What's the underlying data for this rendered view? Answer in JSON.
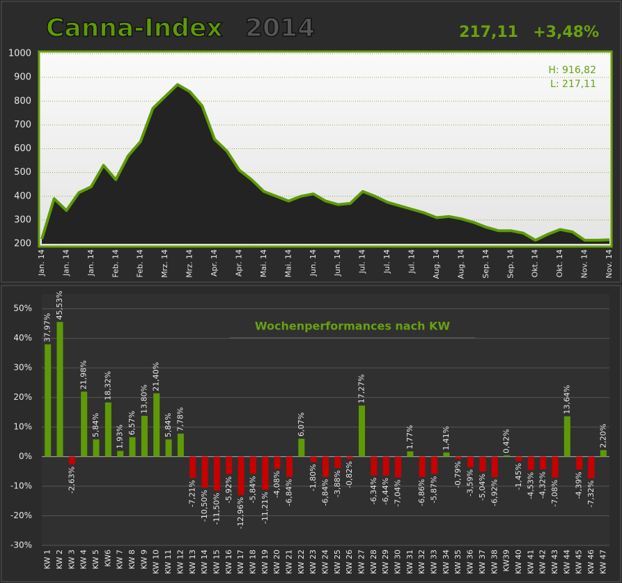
{
  "chart_data": [
    {
      "type": "area",
      "title": "Canna-Index",
      "title_suffix": "2014",
      "last_value_label": "217,11",
      "change_label": "+3,48%",
      "annotations": [
        "H: 916,82",
        "L: 217,11"
      ],
      "categories": [
        "Jan. 14",
        null,
        "Jan. 14",
        null,
        "Jan. 14",
        null,
        "Feb. 14",
        null,
        "Feb. 14",
        null,
        "Mrz. 14",
        null,
        "Mrz. 14",
        null,
        "Apr. 14",
        null,
        "Apr. 14",
        null,
        "Mai. 14",
        null,
        "Mai. 14",
        null,
        "Jun. 14",
        null,
        "Jun. 14",
        null,
        "Jul. 14",
        null,
        "Jul. 14",
        null,
        "Jul. 14",
        null,
        "Aug. 14",
        null,
        "Aug. 14",
        null,
        "Sep. 14",
        null,
        "Sep. 14",
        null,
        "Okt. 14",
        null,
        "Okt. 14",
        null,
        "Nov. 14",
        null,
        "Nov. 14"
      ],
      "values": [
        220,
        390,
        340,
        415,
        440,
        530,
        470,
        570,
        630,
        770,
        820,
        870,
        840,
        780,
        640,
        590,
        510,
        470,
        420,
        400,
        380,
        400,
        410,
        380,
        365,
        370,
        420,
        400,
        375,
        360,
        345,
        330,
        310,
        315,
        305,
        290,
        270,
        255,
        255,
        245,
        215,
        240,
        260,
        250,
        215,
        215,
        217
      ],
      "color": "#5e9a06",
      "fill": "#232323",
      "ylim": [
        200,
        1000
      ],
      "yticks": [
        200,
        300,
        400,
        500,
        600,
        700,
        800,
        900,
        1000
      ],
      "grid": true
    },
    {
      "type": "bar",
      "title": "Wochenperformances nach KW",
      "categories": [
        "KW 1",
        "KW 2",
        "KW 3",
        "KW 4",
        "KW 5",
        "KW6",
        "KW 7",
        "KW 8",
        "KW 9",
        "KW 10",
        "KW 11",
        "KW 12",
        "KW 13",
        "KW 14",
        "KW 15",
        "KW 16",
        "KW 17",
        "KW 18",
        "KW 19",
        "KW 20",
        "KW 21",
        "KW 22",
        "KW 23",
        "KW 24",
        "KW 25",
        "KW 26",
        "KW 27",
        "KW 28",
        "KW 29",
        "KW 30",
        "KW 31",
        "KW 32",
        "KW 33",
        "KW 34",
        "KW 35",
        "KW 36",
        "KW 37",
        "KW 38",
        "KW39",
        "KW 40",
        "KW 41",
        "KW 42",
        "KW 43",
        "KW 44",
        "KW 45",
        "KW 46",
        "KW 47"
      ],
      "values": [
        37.97,
        45.53,
        -2.63,
        21.98,
        5.84,
        18.32,
        1.93,
        6.57,
        13.8,
        21.4,
        5.84,
        7.78,
        -7.21,
        -10.5,
        -11.5,
        -5.92,
        -12.96,
        -5.84,
        -11.21,
        -4.08,
        -6.84,
        6.07,
        -1.8,
        -6.84,
        -3.88,
        -0.82,
        17.27,
        -6.34,
        -6.44,
        -7.04,
        1.77,
        -6.86,
        -5.87,
        1.41,
        -0.79,
        -3.59,
        -5.04,
        -6.92,
        0.42,
        -1.45,
        -4.53,
        -4.32,
        -7.08,
        13.64,
        -4.39,
        -7.32,
        2.2
      ],
      "value_labels": [
        "37,97%",
        "45,53%",
        "-2,63%",
        "21,98%",
        "5,84%",
        "18,32%",
        "1,93%",
        "6,57%",
        "13,80%",
        "21,40%",
        "5,84%",
        "7,78%",
        "-7,21%",
        "-10,50%",
        "-11,50%",
        "-5,92%",
        "-12,96%",
        "-5,84%",
        "-11,21%",
        "-4,08%",
        "-6,84%",
        "6,07%",
        "-1,80%",
        "-6,84%",
        "-3,88%",
        "-0,82%",
        "17,27%",
        "-6,34%",
        "-6,44%",
        "-7,04%",
        "1,77%",
        "-6,86%",
        "-5,87%",
        "1,41%",
        "-0,79%",
        "-3,59%",
        "-5,04%",
        "-6,92%",
        "0,42%",
        "-1,45%",
        "-4,53%",
        "-4,32%",
        "-7,08%",
        "13,64%",
        "-4,39%",
        "-7,32%",
        "2,20%"
      ],
      "positive_color": "#5e9a06",
      "negative_color": "#c80000",
      "ylim": [
        -30,
        55
      ],
      "yticks": [
        {
          "value": -30,
          "label": "-30%"
        },
        {
          "value": -20,
          "label": "-20%"
        },
        {
          "value": -10,
          "label": "-10%"
        },
        {
          "value": 0,
          "label": "0%"
        },
        {
          "value": 10,
          "label": "10%"
        },
        {
          "value": 20,
          "label": "20%"
        },
        {
          "value": 30,
          "label": "30%"
        },
        {
          "value": 40,
          "label": "40%"
        },
        {
          "value": 50,
          "label": "50%"
        }
      ],
      "grid": true
    }
  ]
}
